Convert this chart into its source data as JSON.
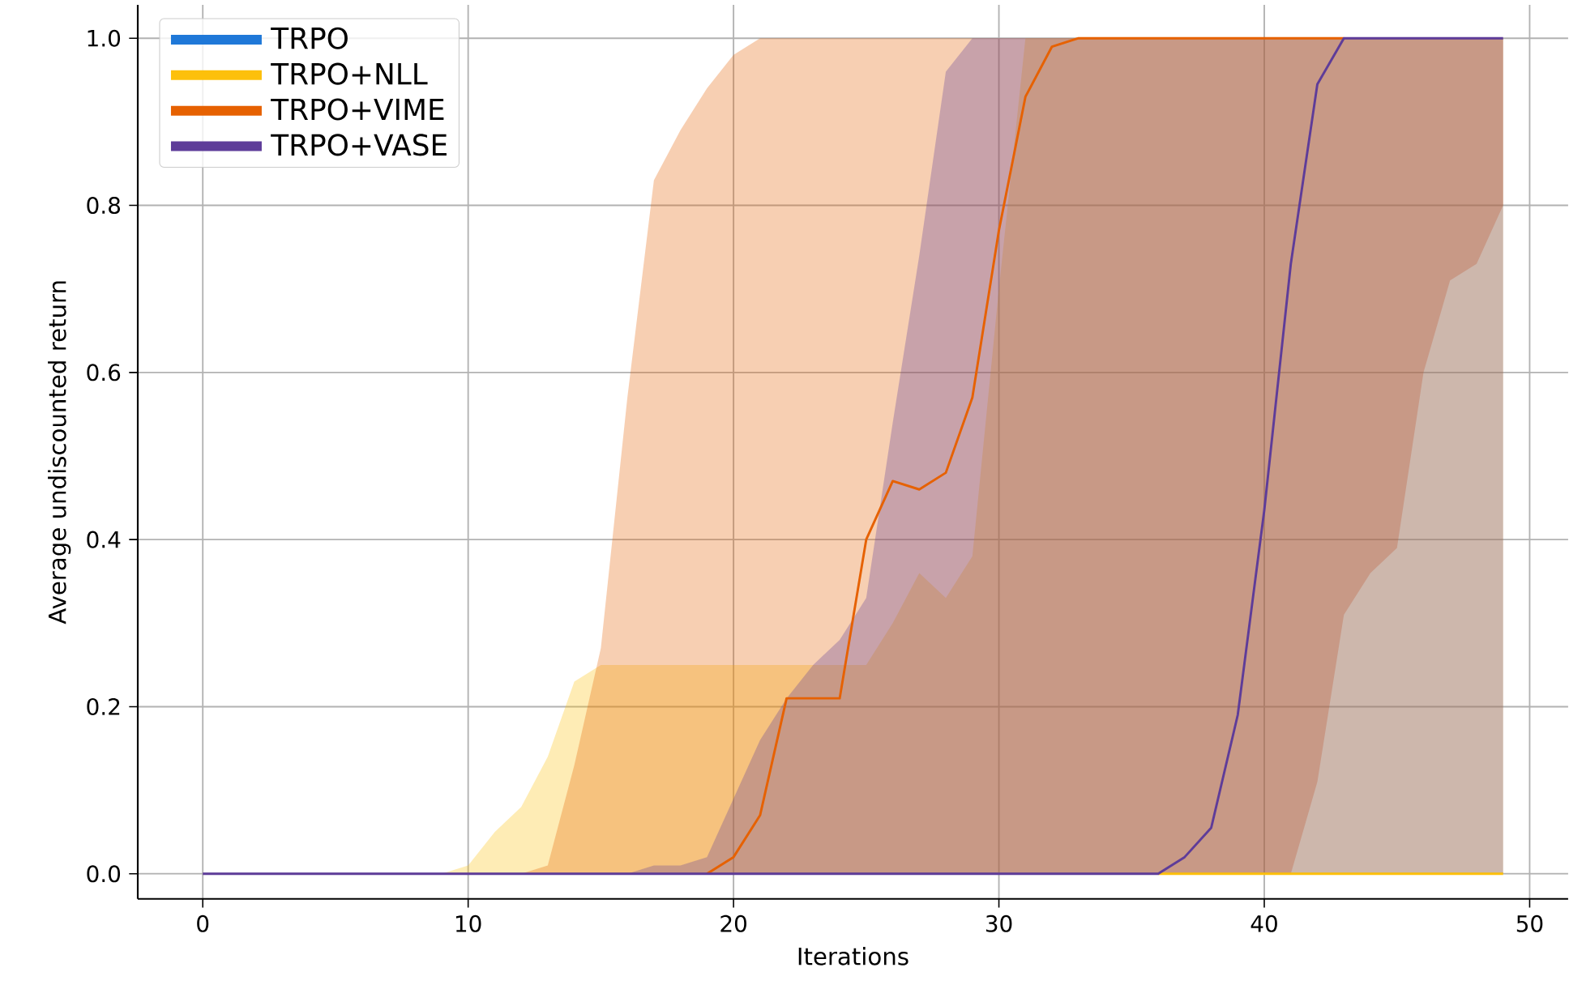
{
  "chart_data": {
    "type": "line",
    "xlabel": "Iterations",
    "ylabel": "Average undiscounted return",
    "x": [
      0,
      1,
      2,
      3,
      4,
      5,
      6,
      7,
      8,
      9,
      10,
      11,
      12,
      13,
      14,
      15,
      16,
      17,
      18,
      19,
      20,
      21,
      22,
      23,
      24,
      25,
      26,
      27,
      28,
      29,
      30,
      31,
      32,
      33,
      34,
      35,
      36,
      37,
      38,
      39,
      40,
      41,
      42,
      43,
      44,
      45,
      46,
      47,
      48,
      49
    ],
    "xlim": [
      -2.45,
      51.45
    ],
    "ylim": [
      -0.03,
      1.04
    ],
    "xticks": [
      0,
      10,
      20,
      30,
      40,
      50
    ],
    "yticks": [
      {
        "value": 0,
        "label": "0.0"
      },
      0.2,
      0.4,
      0.6,
      0.8,
      {
        "value": 1,
        "label": "1.0"
      }
    ],
    "grid": true,
    "legend": "top left",
    "series": [
      {
        "name": "TRPO",
        "color": "#1f78d8",
        "values": [
          null,
          null,
          null,
          null,
          null,
          null,
          null,
          null,
          null,
          null,
          null,
          null,
          null,
          null,
          null,
          null,
          null,
          null,
          null,
          null,
          null,
          null,
          null,
          null,
          null,
          null,
          null,
          null,
          null,
          null,
          null,
          null,
          null,
          null,
          null,
          null,
          null,
          null,
          null,
          null,
          null,
          null,
          null,
          null,
          null,
          null,
          null,
          null,
          null,
          null
        ]
      },
      {
        "name": "TRPO+NLL",
        "color": "#fdc00b",
        "values": [
          null,
          null,
          null,
          null,
          null,
          null,
          null,
          null,
          null,
          null,
          null,
          null,
          null,
          null,
          null,
          null,
          null,
          null,
          null,
          null,
          null,
          null,
          null,
          null,
          null,
          null,
          null,
          null,
          null,
          null,
          null,
          null,
          null,
          null,
          null,
          null,
          0,
          0,
          0,
          0,
          0,
          0,
          0,
          0,
          0,
          0,
          0,
          0,
          0,
          0
        ],
        "lower": [
          null,
          null,
          null,
          null,
          null,
          null,
          null,
          null,
          null,
          0,
          0,
          0,
          0,
          0,
          0,
          0,
          0,
          0,
          0,
          0,
          0,
          0,
          0,
          0,
          0,
          0,
          0,
          0,
          0,
          0,
          0,
          0,
          0,
          0,
          0,
          0,
          0,
          0,
          0,
          0,
          0,
          0,
          0,
          0,
          0,
          0,
          0,
          0,
          0,
          0
        ],
        "upper": [
          null,
          null,
          null,
          null,
          null,
          null,
          null,
          null,
          null,
          0,
          0.01,
          0.05,
          0.08,
          0.14,
          0.23,
          0.25,
          0.25,
          0.25,
          0.25,
          0.25,
          0.25,
          0.25,
          0.25,
          0.25,
          0.25,
          0.25,
          0.3,
          0.36,
          0.33,
          0.38,
          0.7,
          1,
          1,
          1,
          1,
          1,
          1,
          1,
          1,
          1,
          1,
          1,
          1,
          1,
          1,
          1,
          1,
          1,
          1,
          1
        ]
      },
      {
        "name": "TRPO+VIME",
        "color": "#e66101",
        "values": [
          null,
          null,
          null,
          null,
          null,
          null,
          null,
          null,
          null,
          null,
          null,
          null,
          null,
          null,
          null,
          null,
          null,
          null,
          null,
          0,
          0.02,
          0.07,
          0.21,
          0.21,
          0.21,
          0.4,
          0.47,
          0.46,
          0.48,
          0.57,
          0.77,
          0.93,
          0.99,
          1,
          1,
          1,
          1,
          1,
          1,
          1,
          1,
          1,
          1,
          1,
          null,
          null,
          null,
          null,
          null,
          null
        ],
        "lower": [
          null,
          null,
          null,
          null,
          null,
          null,
          null,
          null,
          null,
          null,
          null,
          null,
          0,
          0,
          0,
          0,
          0,
          0,
          0,
          0,
          0,
          0,
          0,
          0,
          0,
          0,
          0,
          0,
          0,
          0,
          0,
          0,
          0,
          0,
          0,
          0,
          0,
          0,
          0,
          0,
          0,
          0,
          0.11,
          0.31,
          0.36,
          0.39,
          0.6,
          0.71,
          0.73,
          0.8
        ],
        "upper": [
          null,
          null,
          null,
          null,
          null,
          null,
          null,
          null,
          null,
          null,
          null,
          null,
          0,
          0.01,
          0.13,
          0.27,
          0.57,
          0.83,
          0.89,
          0.94,
          0.98,
          1,
          1,
          1,
          1,
          1,
          1,
          1,
          1,
          1,
          1,
          1,
          1,
          1,
          1,
          1,
          1,
          1,
          1,
          1,
          1,
          1,
          1,
          1,
          1,
          1,
          1,
          1,
          1,
          1
        ]
      },
      {
        "name": "TRPO+VASE",
        "color": "#5e3c99",
        "values": [
          0,
          0,
          0,
          0,
          0,
          0,
          0,
          0,
          0,
          0,
          0,
          0,
          0,
          0,
          0,
          0,
          0,
          0,
          0,
          0,
          0,
          0,
          0,
          0,
          0,
          0,
          0,
          0,
          0,
          0,
          0,
          0,
          0,
          0,
          0,
          0,
          0,
          0.02,
          0.055,
          0.19,
          0.435,
          0.73,
          0.945,
          1,
          1,
          1,
          1,
          1,
          1,
          1
        ],
        "lower": [
          null,
          null,
          null,
          null,
          null,
          null,
          null,
          null,
          null,
          null,
          null,
          null,
          null,
          null,
          null,
          null,
          0,
          0,
          0,
          0,
          0,
          0,
          0,
          0,
          0,
          0,
          0,
          0,
          0,
          0,
          0,
          0,
          0,
          0,
          0,
          0,
          0,
          0,
          0,
          0,
          0,
          0,
          0,
          0,
          0,
          0,
          0,
          0,
          0,
          0
        ],
        "upper": [
          null,
          null,
          null,
          null,
          null,
          null,
          null,
          null,
          null,
          null,
          null,
          null,
          null,
          null,
          null,
          null,
          0,
          0.01,
          0.01,
          0.02,
          0.09,
          0.16,
          0.21,
          0.25,
          0.28,
          0.33,
          0.54,
          0.74,
          0.96,
          1,
          1,
          1,
          1,
          1,
          1,
          1,
          1,
          1,
          1,
          1,
          1,
          1,
          1,
          1,
          1,
          1,
          1,
          1,
          1,
          1
        ]
      }
    ]
  }
}
